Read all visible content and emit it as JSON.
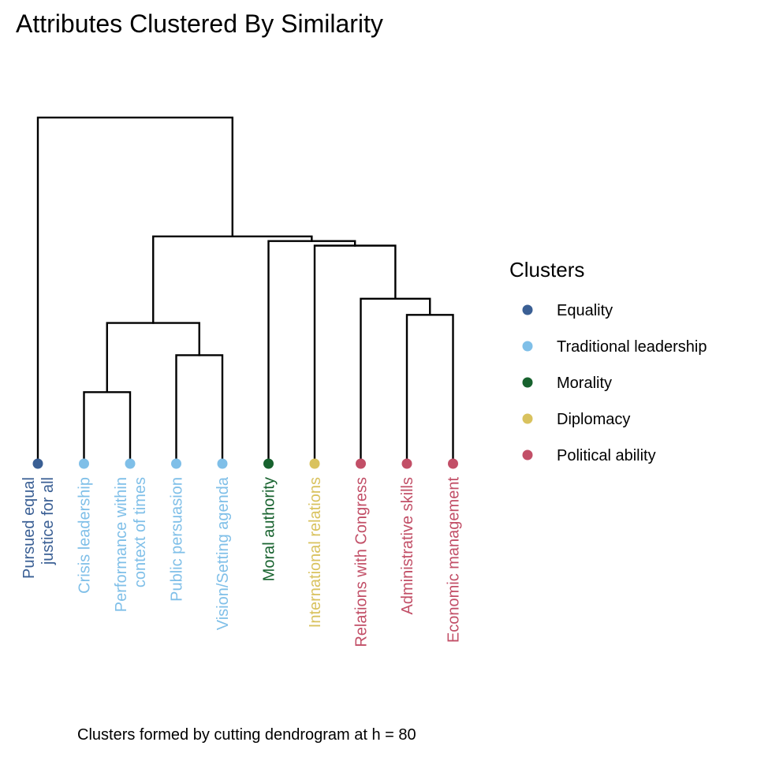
{
  "title": "Attributes Clustered By Similarity",
  "caption": "Clusters formed by cutting dendrogram at h = 80",
  "chart_data": {
    "type": "dendrogram",
    "title": "Attributes Clustered By Similarity",
    "caption": "Clusters formed by cutting dendrogram at h = 80",
    "cut_height": 80,
    "legend": {
      "title": "Clusters",
      "position": "right",
      "items": [
        {
          "name": "Equality",
          "color": "#3a5f94"
        },
        {
          "name": "Traditional leadership",
          "color": "#7fbfe8"
        },
        {
          "name": "Morality",
          "color": "#17622e"
        },
        {
          "name": "Diplomacy",
          "color": "#d9c25e"
        },
        {
          "name": "Political ability",
          "color": "#c24f67"
        }
      ]
    },
    "leaves": [
      {
        "id": "L0",
        "lines": [
          "Pursued equal",
          "justice for all"
        ],
        "cluster": "Equality"
      },
      {
        "id": "L1",
        "lines": [
          "Crisis leadership"
        ],
        "cluster": "Traditional leadership"
      },
      {
        "id": "L2",
        "lines": [
          "Performance within",
          "context of times"
        ],
        "cluster": "Traditional leadership"
      },
      {
        "id": "L3",
        "lines": [
          "Public persuasion"
        ],
        "cluster": "Traditional leadership"
      },
      {
        "id": "L4",
        "lines": [
          "Vision/Setting agenda"
        ],
        "cluster": "Traditional leadership"
      },
      {
        "id": "L5",
        "lines": [
          "Moral authority"
        ],
        "cluster": "Morality"
      },
      {
        "id": "L6",
        "lines": [
          "International relations"
        ],
        "cluster": "Diplomacy"
      },
      {
        "id": "L7",
        "lines": [
          "Relations with Congress"
        ],
        "cluster": "Political ability"
      },
      {
        "id": "L8",
        "lines": [
          "Administrative skills"
        ],
        "cluster": "Political ability"
      },
      {
        "id": "L9",
        "lines": [
          "Economic management"
        ],
        "cluster": "Political ability"
      }
    ],
    "merges": [
      {
        "id": "M1",
        "left": "L1",
        "right": "L2",
        "height": 31
      },
      {
        "id": "M2",
        "left": "L3",
        "right": "L4",
        "height": 47
      },
      {
        "id": "M3",
        "left": "M1",
        "right": "M2",
        "height": 61
      },
      {
        "id": "M4",
        "left": "L8",
        "right": "L9",
        "height": 64.5
      },
      {
        "id": "M5",
        "left": "L7",
        "right": "M4",
        "height": 71.5
      },
      {
        "id": "M6",
        "left": "L6",
        "right": "M5",
        "height": 94.5
      },
      {
        "id": "M7",
        "left": "L5",
        "right": "M6",
        "height": 96.5
      },
      {
        "id": "M8",
        "left": "M3",
        "right": "M7",
        "height": 98.5
      },
      {
        "id": "M9",
        "left": "L0",
        "right": "M8",
        "height": 150
      }
    ]
  }
}
